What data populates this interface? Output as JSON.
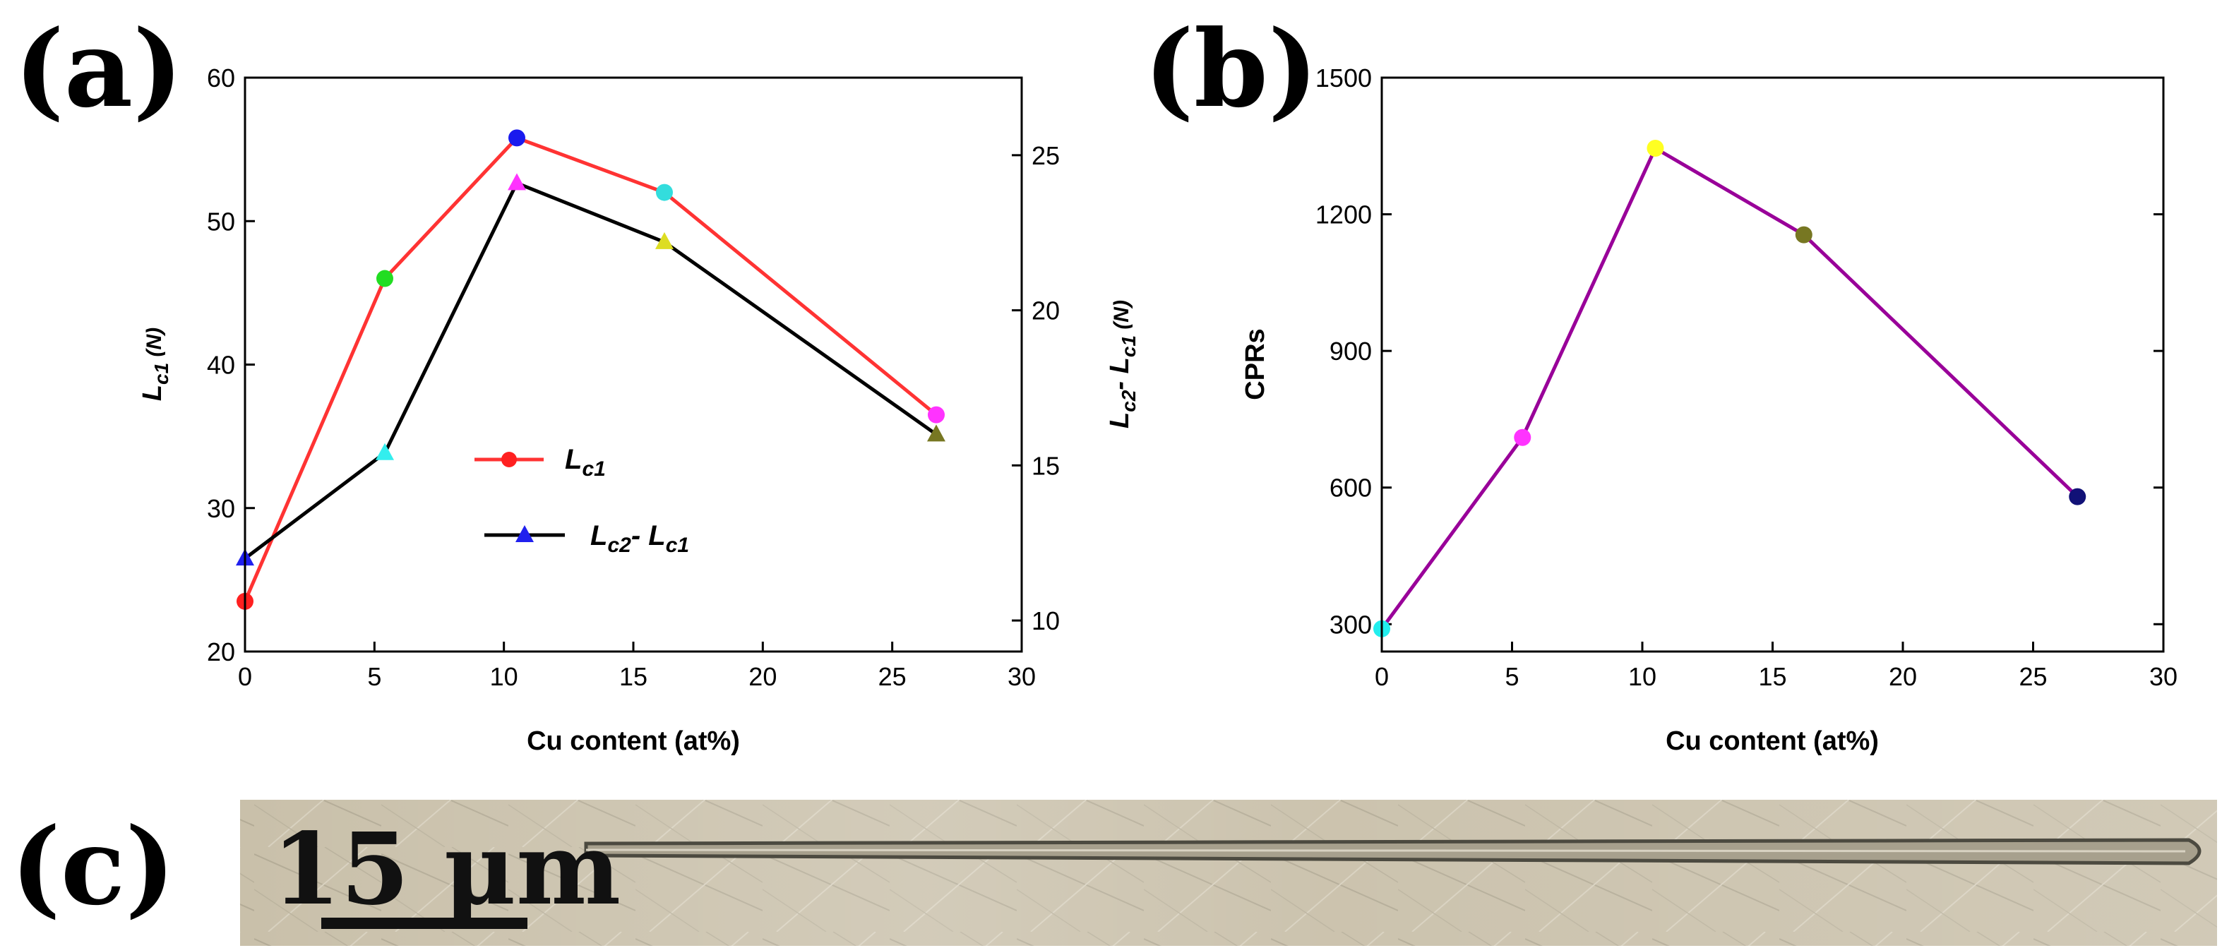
{
  "labels": {
    "a": "(a)",
    "b": "(b)",
    "c": "(c)"
  },
  "chart_data": [
    {
      "id": "a",
      "type": "line",
      "xlabel": "Cu content (at%)",
      "ylabel_left": "Lc1 (N)",
      "ylabel_right": "Lc2 - Lc1 (N)",
      "xlim": [
        0,
        30
      ],
      "xticks": [
        0,
        5,
        10,
        15,
        20,
        25,
        30
      ],
      "ylim_left": [
        20,
        60
      ],
      "yticks_left": [
        20,
        30,
        40,
        50,
        60
      ],
      "ylim_right": [
        9,
        27.5
      ],
      "yticks_right": [
        10,
        15,
        20,
        25
      ],
      "x": [
        0,
        5.4,
        10.5,
        16.2,
        26.7
      ],
      "series": [
        {
          "name": "Lc1",
          "axis": "left",
          "marker": "circle",
          "line_color": "#ff3333",
          "values": [
            23.5,
            46.0,
            55.8,
            52.0,
            36.5
          ],
          "marker_colors": [
            "#ff2020",
            "#22dd22",
            "#1a1aee",
            "#33dddd",
            "#ff33ff"
          ]
        },
        {
          "name": "Lc2- Lc1",
          "axis": "right",
          "marker": "triangle",
          "line_color": "#000000",
          "values": [
            12.0,
            15.4,
            24.1,
            22.2,
            16.0
          ],
          "marker_colors": [
            "#2020ee",
            "#33eeee",
            "#ff33ff",
            "#dddd22",
            "#777722"
          ]
        }
      ],
      "legend": {
        "lc1": {
          "main": "L",
          "sub": "c1"
        },
        "diff": {
          "main1": "L",
          "sub1": "c2",
          "dash": "- ",
          "main2": "L",
          "sub2": "c1"
        }
      },
      "ylabel_left_parts": {
        "main": "L",
        "sub": "c1",
        "unit": " (N)"
      },
      "ylabel_right_parts": {
        "main1": "L",
        "sub1": "c2",
        "dash": "- ",
        "main2": "L",
        "sub2": "c1",
        "unit": " (N)"
      }
    },
    {
      "id": "b",
      "type": "line",
      "xlabel": "Cu content (at%)",
      "ylabel": "CPRs",
      "xlim": [
        0,
        30
      ],
      "xticks": [
        0,
        5,
        10,
        15,
        20,
        25,
        30
      ],
      "ylim": [
        240,
        1500
      ],
      "yticks": [
        300,
        600,
        900,
        1200,
        1500
      ],
      "x": [
        0,
        5.4,
        10.5,
        16.2,
        26.7
      ],
      "series": [
        {
          "name": "CPRs",
          "marker": "circle",
          "line_color": "#990099",
          "values": [
            290,
            710,
            1345,
            1155,
            580
          ],
          "marker_colors": [
            "#22eeee",
            "#ff33ff",
            "#ffff22",
            "#777722",
            "#111177"
          ]
        }
      ]
    }
  ],
  "micrograph": {
    "scale_bar": "15 μm"
  }
}
